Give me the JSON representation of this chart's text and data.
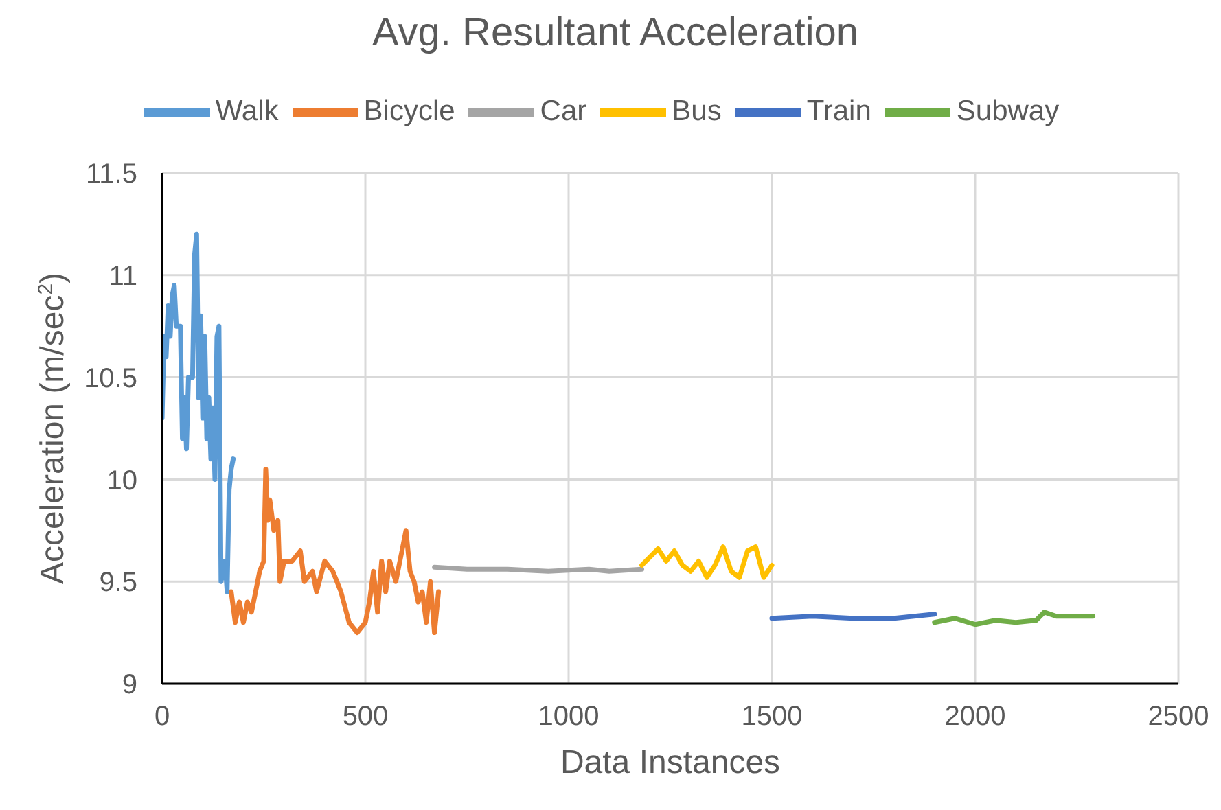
{
  "chart_data": {
    "type": "line",
    "title": "Avg. Resultant Acceleration",
    "xlabel": "Data Instances",
    "ylabel": "Acceleration (m/sec$^{2}$)",
    "xlim": [
      0,
      2500
    ],
    "xticks": [
      0,
      500,
      1000,
      1500,
      2000,
      2500
    ],
    "ylim": [
      9,
      11.5
    ],
    "yticks": [
      9,
      9.5,
      10,
      10.5,
      11,
      11.5
    ],
    "grid": true,
    "legend": "top",
    "marker": "none",
    "line_style": "solid",
    "series": [
      {
        "name": "Walk",
        "color": "#5b9bd5",
        "x": [
          0,
          5,
          10,
          15,
          20,
          25,
          30,
          35,
          45,
          50,
          55,
          60,
          65,
          70,
          75,
          80,
          85,
          90,
          95,
          100,
          105,
          110,
          115,
          120,
          125,
          130,
          135,
          140,
          145,
          150,
          155,
          160,
          165,
          170,
          175
        ],
        "values": [
          10.3,
          10.7,
          10.6,
          10.85,
          10.7,
          10.9,
          10.95,
          10.75,
          10.75,
          10.2,
          10.4,
          10.15,
          10.5,
          10.5,
          10.5,
          11.1,
          11.2,
          10.4,
          10.8,
          10.3,
          10.7,
          10.2,
          10.4,
          10.1,
          10.35,
          10.0,
          10.7,
          10.75,
          9.5,
          9.55,
          9.6,
          9.45,
          9.95,
          10.05,
          10.1
        ]
      },
      {
        "name": "Bicycle",
        "color": "#ed7d31",
        "x": [
          170,
          180,
          190,
          200,
          210,
          220,
          230,
          240,
          250,
          255,
          260,
          265,
          275,
          285,
          290,
          300,
          320,
          340,
          350,
          370,
          380,
          400,
          420,
          440,
          460,
          480,
          500,
          510,
          520,
          530,
          540,
          550,
          560,
          575,
          590,
          600,
          610,
          620,
          630,
          640,
          650,
          660,
          670,
          680
        ],
        "values": [
          9.45,
          9.3,
          9.4,
          9.3,
          9.4,
          9.35,
          9.45,
          9.55,
          9.6,
          10.05,
          9.8,
          9.9,
          9.75,
          9.8,
          9.5,
          9.6,
          9.6,
          9.65,
          9.5,
          9.55,
          9.45,
          9.6,
          9.55,
          9.45,
          9.3,
          9.25,
          9.3,
          9.4,
          9.55,
          9.35,
          9.6,
          9.45,
          9.6,
          9.5,
          9.65,
          9.75,
          9.55,
          9.5,
          9.4,
          9.45,
          9.3,
          9.5,
          9.25,
          9.45
        ]
      },
      {
        "name": "Car",
        "color": "#a5a5a5",
        "x": [
          670,
          750,
          850,
          950,
          1050,
          1100,
          1180
        ],
        "values": [
          9.57,
          9.56,
          9.56,
          9.55,
          9.56,
          9.55,
          9.56
        ]
      },
      {
        "name": "Bus",
        "color": "#ffc000",
        "x": [
          1180,
          1200,
          1220,
          1240,
          1260,
          1280,
          1300,
          1320,
          1340,
          1360,
          1380,
          1400,
          1420,
          1440,
          1460,
          1480,
          1500
        ],
        "values": [
          9.58,
          9.62,
          9.66,
          9.6,
          9.65,
          9.58,
          9.55,
          9.6,
          9.52,
          9.58,
          9.67,
          9.55,
          9.52,
          9.65,
          9.67,
          9.52,
          9.58
        ]
      },
      {
        "name": "Train",
        "color": "#4472c4",
        "x": [
          1500,
          1600,
          1700,
          1800,
          1900
        ],
        "values": [
          9.32,
          9.33,
          9.32,
          9.32,
          9.34
        ]
      },
      {
        "name": "Subway",
        "color": "#70ad47",
        "x": [
          1900,
          1950,
          2000,
          2050,
          2100,
          2150,
          2170,
          2200,
          2290
        ],
        "values": [
          9.3,
          9.32,
          9.29,
          9.31,
          9.3,
          9.31,
          9.35,
          9.33,
          9.33
        ]
      }
    ]
  }
}
